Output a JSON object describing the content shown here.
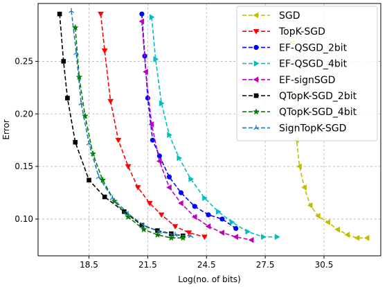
{
  "chart_data": {
    "type": "line",
    "xlabel": "Log(no. of bits)",
    "ylabel": "Error",
    "xlim": [
      15.9,
      33.4
    ],
    "ylim": [
      0.065,
      0.305
    ],
    "xticks": [
      18.5,
      21.5,
      24.5,
      27.5,
      30.5
    ],
    "xtick_labels": [
      "18.5",
      "21.5",
      "24.5",
      "27.5",
      "30.5"
    ],
    "yticks": [
      0.1,
      0.15,
      0.2,
      0.25
    ],
    "ytick_labels": [
      "0.10",
      "0.15",
      "0.20",
      "0.25"
    ],
    "grid": true,
    "legend_position": "top-right",
    "series": [
      {
        "name": "SGD",
        "color": "#bfbf00",
        "marker": "tri-left",
        "x": [
          28.9,
          29.0,
          29.1,
          29.25,
          29.5,
          29.8,
          30.2,
          30.7,
          31.2,
          31.7,
          32.2,
          32.7
        ],
        "y": [
          0.268,
          0.215,
          0.175,
          0.15,
          0.13,
          0.113,
          0.103,
          0.097,
          0.09,
          0.085,
          0.082,
          0.082
        ]
      },
      {
        "name": "TopK-SGD",
        "color": "#ff0000",
        "marker": "triangle-down",
        "x": [
          19.1,
          19.3,
          19.6,
          20.0,
          20.5,
          21.0,
          21.6,
          22.2,
          22.9,
          23.6,
          24.4
        ],
        "y": [
          0.295,
          0.26,
          0.212,
          0.175,
          0.15,
          0.13,
          0.115,
          0.104,
          0.093,
          0.087,
          0.083
        ]
      },
      {
        "name": "EF-QSGD_2bit",
        "color": "#0000ff",
        "marker": "circle",
        "x": [
          21.2,
          21.35,
          21.5,
          21.75,
          22.1,
          22.6,
          23.2,
          23.9,
          24.6,
          25.3,
          26.0
        ],
        "y": [
          0.295,
          0.255,
          0.215,
          0.175,
          0.16,
          0.14,
          0.125,
          0.112,
          0.104,
          0.1,
          0.091
        ]
      },
      {
        "name": "EF-QSGD_4bit",
        "color": "#00bfbf",
        "marker": "tri-right",
        "x": [
          21.7,
          21.9,
          22.2,
          22.6,
          23.1,
          23.7,
          24.4,
          25.1,
          25.8,
          26.6,
          27.4,
          28.1
        ],
        "y": [
          0.292,
          0.252,
          0.21,
          0.18,
          0.158,
          0.138,
          0.12,
          0.107,
          0.097,
          0.088,
          0.083,
          0.083
        ]
      },
      {
        "name": "EF-signSGD",
        "color": "#bf00bf",
        "marker": "tri-left",
        "x": [
          21.2,
          21.4,
          21.7,
          22.1,
          22.6,
          23.2,
          23.9,
          24.6,
          25.3,
          26.0,
          26.8
        ],
        "y": [
          0.288,
          0.24,
          0.19,
          0.155,
          0.13,
          0.115,
          0.102,
          0.093,
          0.087,
          0.083,
          0.08
        ]
      },
      {
        "name": "QTopK-SGD_2bit",
        "color": "#000000",
        "marker": "square",
        "x": [
          17.0,
          17.2,
          17.4,
          17.8,
          18.5,
          19.3,
          20.3,
          21.2,
          22.0,
          22.7,
          23.3
        ],
        "y": [
          0.295,
          0.25,
          0.215,
          0.173,
          0.137,
          0.121,
          0.107,
          0.094,
          0.089,
          0.086,
          0.084
        ]
      },
      {
        "name": "QTopK-SGD_4bit",
        "color": "#008000",
        "marker": "star",
        "x": [
          17.8,
          18.0,
          18.3,
          18.7,
          19.2,
          19.8,
          20.5,
          21.3,
          22.0,
          22.7,
          23.3
        ],
        "y": [
          0.282,
          0.235,
          0.198,
          0.162,
          0.137,
          0.117,
          0.102,
          0.09,
          0.085,
          0.082,
          0.082
        ]
      },
      {
        "name": "SignTopK-SGD",
        "color": "#1f77b4",
        "marker": "tri-down",
        "x": [
          17.6,
          17.85,
          18.1,
          18.5,
          19.0,
          19.7,
          20.5,
          21.3,
          22.1,
          22.9,
          23.7
        ],
        "y": [
          0.298,
          0.258,
          0.21,
          0.172,
          0.14,
          0.12,
          0.105,
          0.094,
          0.088,
          0.085,
          0.084
        ]
      }
    ]
  }
}
